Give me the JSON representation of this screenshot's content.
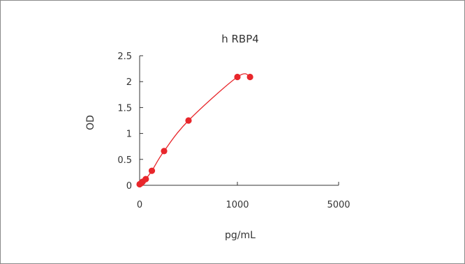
{
  "chart_data": {
    "type": "scatter",
    "title": "h  RBP4",
    "xlabel": "pg/mL",
    "ylabel": "OD",
    "xlim": [
      0,
      5000
    ],
    "ylim": [
      0,
      2.5
    ],
    "xticks": [
      0,
      1000,
      5000
    ],
    "yticks": [
      0,
      0.5,
      1,
      1.5,
      2,
      2.5
    ],
    "grid": false,
    "legend": "none",
    "series": [
      {
        "marker": "circle",
        "trendline": true,
        "color": "#e8262b",
        "x": [
          0,
          15.625,
          31.25,
          62.5,
          125,
          250,
          500,
          1000,
          1500
        ],
        "y": [
          0.02,
          0.04,
          0.07,
          0.12,
          0.28,
          0.66,
          1.25,
          2.09,
          2.09
        ]
      }
    ]
  }
}
